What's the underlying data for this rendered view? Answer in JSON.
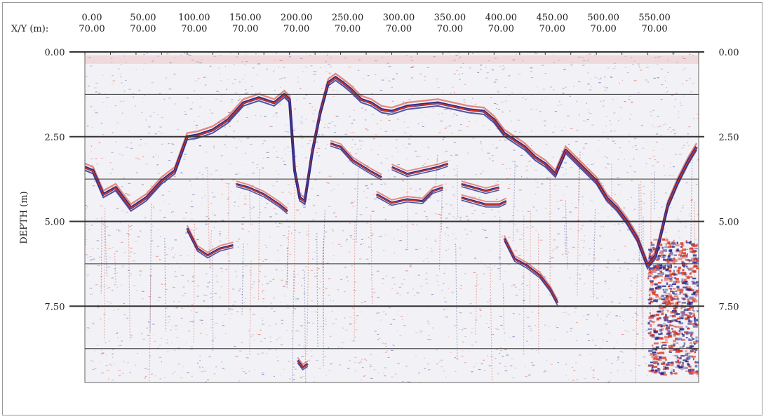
{
  "chart_data": {
    "type": "heatmap",
    "title": "",
    "xlabel": "X/Y (m):",
    "ylabel": "DEPTH (m)",
    "x_ticks": [
      "0.00",
      "50.00",
      "100.00",
      "150.00",
      "200.00",
      "250.00",
      "300.00",
      "350.00",
      "400.00",
      "450.00",
      "500.00",
      "550.00"
    ],
    "x_tick_values": [
      0,
      50,
      100,
      150,
      200,
      250,
      300,
      350,
      400,
      450,
      500,
      550
    ],
    "y_fixed_label": "70.00",
    "y_ticks": [
      "0.00",
      "2.50",
      "5.00",
      "7.50"
    ],
    "y_tick_values": [
      0,
      2.5,
      5,
      7.5
    ],
    "minor_gridlines_depth": [
      1.25,
      3.75,
      6.25,
      8.75
    ],
    "xlim": [
      0,
      600
    ],
    "ylim": [
      0,
      9.75
    ],
    "grid": true,
    "colors": {
      "positive": "#d8341f",
      "negative": "#262b8f",
      "background": "#f2f2f6",
      "gridline": "#333333"
    },
    "main_reflector": {
      "x": [
        0,
        8,
        18,
        30,
        45,
        60,
        75,
        88,
        100,
        110,
        125,
        140,
        155,
        170,
        185,
        195,
        200,
        205,
        210,
        215,
        222,
        230,
        238,
        245,
        252,
        260,
        270,
        280,
        290,
        300,
        315,
        330,
        345,
        360,
        375,
        390,
        400,
        410,
        420,
        430,
        440,
        450,
        460,
        470,
        480,
        490,
        500,
        510,
        520,
        530,
        540,
        550,
        558,
        563,
        570,
        580,
        590,
        598
      ],
      "depth": [
        3.4,
        3.5,
        4.2,
        4.0,
        4.6,
        4.3,
        3.8,
        3.5,
        2.5,
        2.45,
        2.3,
        2.0,
        1.5,
        1.35,
        1.5,
        1.25,
        1.4,
        3.5,
        4.3,
        4.4,
        3.0,
        1.8,
        0.9,
        0.75,
        0.9,
        1.1,
        1.4,
        1.5,
        1.7,
        1.75,
        1.6,
        1.55,
        1.5,
        1.6,
        1.7,
        1.75,
        2.0,
        2.4,
        2.6,
        2.8,
        3.1,
        3.3,
        3.6,
        2.9,
        3.2,
        3.5,
        3.8,
        4.3,
        4.6,
        5.0,
        5.5,
        6.3,
        6.0,
        5.4,
        4.5,
        3.8,
        3.2,
        2.8
      ]
    },
    "secondary_reflectors": [
      {
        "x": [
          100,
          110,
          120,
          132,
          145
        ],
        "depth": [
          5.2,
          5.8,
          6.0,
          5.8,
          5.7
        ]
      },
      {
        "x": [
          148,
          160,
          175,
          190,
          198
        ],
        "depth": [
          3.9,
          4.0,
          4.2,
          4.5,
          4.7
        ]
      },
      {
        "x": [
          240,
          250,
          262,
          278,
          290
        ],
        "depth": [
          2.7,
          2.8,
          3.2,
          3.5,
          3.7
        ]
      },
      {
        "x": [
          285,
          300,
          315,
          330,
          340,
          350
        ],
        "depth": [
          4.2,
          4.45,
          4.35,
          4.4,
          4.1,
          4.0
        ]
      },
      {
        "x": [
          300,
          315,
          330,
          345,
          355
        ],
        "depth": [
          3.4,
          3.6,
          3.5,
          3.4,
          3.3
        ]
      },
      {
        "x": [
          368,
          380,
          392,
          405,
          412
        ],
        "depth": [
          4.3,
          4.4,
          4.5,
          4.5,
          4.4
        ]
      },
      {
        "x": [
          368,
          380,
          392,
          405
        ],
        "depth": [
          3.9,
          4.0,
          4.1,
          4.0
        ]
      },
      {
        "x": [
          410,
          420,
          432,
          445,
          455,
          462
        ],
        "depth": [
          5.5,
          6.1,
          6.3,
          6.6,
          7.0,
          7.4
        ]
      },
      {
        "x": [
          208,
          213,
          218
        ],
        "depth": [
          9.1,
          9.3,
          9.2
        ]
      }
    ],
    "noisy_zone": {
      "x_start": 550,
      "x_end": 598,
      "depth_start": 5.5,
      "depth_end": 9.5
    }
  }
}
